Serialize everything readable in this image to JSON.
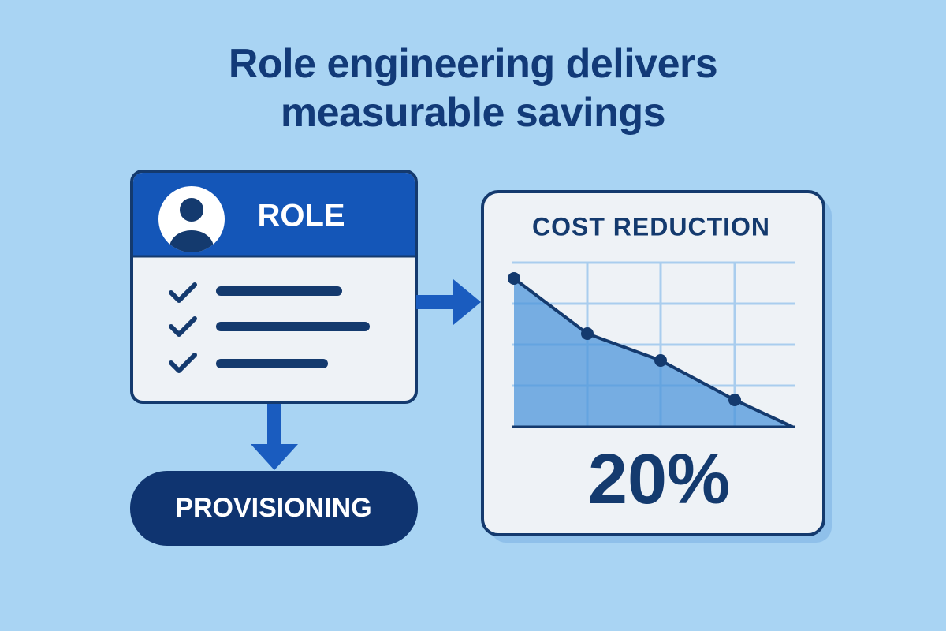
{
  "title": "Role engineering delivers measurable savings",
  "role_card": {
    "label": "ROLE"
  },
  "provisioning": {
    "label": "PROVISIONING"
  },
  "cost_card": {
    "title": "COST REDUCTION",
    "value": "20%"
  }
}
